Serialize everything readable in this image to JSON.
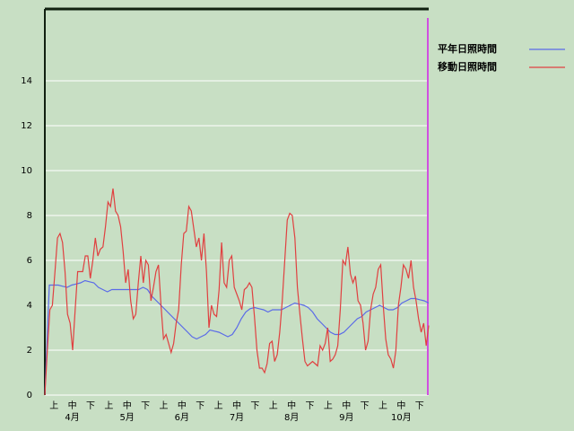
{
  "chart_data": {
    "type": "line",
    "x_tick_labels": [
      "上",
      "中",
      "下",
      "上",
      "中",
      "下",
      "上",
      "中",
      "下",
      "上",
      "中",
      "下",
      "上",
      "中",
      "下",
      "上",
      "中",
      "下",
      "上",
      "中",
      "下"
    ],
    "months": [
      "4月",
      "5月",
      "6月",
      "7月",
      "8月",
      "9月",
      "10月"
    ],
    "ylim": [
      0,
      17.2
    ],
    "yticks": [
      0,
      2,
      4,
      6,
      8,
      10,
      12,
      14
    ],
    "grid": true,
    "legend": "upper right",
    "series": [
      {
        "name": "平年日照時間",
        "color": "#5a6ae8",
        "values": [
          0,
          4.9,
          4.9,
          4.9,
          4.85,
          4.8,
          4.9,
          4.95,
          5.0,
          5.1,
          5.05,
          5.0,
          4.8,
          4.7,
          4.6,
          4.7,
          4.7,
          4.7,
          4.7,
          4.7,
          4.7,
          4.7,
          4.8,
          4.7,
          4.4,
          4.2,
          4.0,
          3.8,
          3.6,
          3.4,
          3.2,
          3.0,
          2.8,
          2.6,
          2.5,
          2.6,
          2.7,
          2.9,
          2.85,
          2.8,
          2.7,
          2.6,
          2.7,
          3.0,
          3.4,
          3.7,
          3.85,
          3.9,
          3.85,
          3.8,
          3.7,
          3.8,
          3.8,
          3.8,
          3.9,
          4.0,
          4.1,
          4.05,
          4.0,
          3.9,
          3.7,
          3.4,
          3.2,
          3.0,
          2.8,
          2.7,
          2.7,
          2.8,
          3.0,
          3.2,
          3.4,
          3.5,
          3.7,
          3.8,
          3.9,
          4.0,
          3.9,
          3.8,
          3.8,
          3.9,
          4.1,
          4.2,
          4.3,
          4.3,
          4.25,
          4.2,
          4.1
        ]
      },
      {
        "name": "移動日照時間",
        "color": "#e04040",
        "values": [
          0,
          2.0,
          3.8,
          4.0,
          5.5,
          7.0,
          7.2,
          6.8,
          5.5,
          3.6,
          3.2,
          2.0,
          3.8,
          5.5,
          5.5,
          5.5,
          6.2,
          6.2,
          5.2,
          6.0,
          7.0,
          6.2,
          6.5,
          6.6,
          7.5,
          8.6,
          8.4,
          9.2,
          8.2,
          8.0,
          7.5,
          6.4,
          5.0,
          5.6,
          4.2,
          3.4,
          3.6,
          5.0,
          6.2,
          5.0,
          6.0,
          5.8,
          4.2,
          4.8,
          5.5,
          5.8,
          4.0,
          2.5,
          2.7,
          2.3,
          1.9,
          2.3,
          3.2,
          3.8,
          5.8,
          7.2,
          7.3,
          8.4,
          8.2,
          7.4,
          6.6,
          7.0,
          6.0,
          7.2,
          5.5,
          3.0,
          4.0,
          3.6,
          3.5,
          4.7,
          6.8,
          5.0,
          4.8,
          6.0,
          6.2,
          4.8,
          4.5,
          4.2,
          3.8,
          4.7,
          4.8,
          5.0,
          4.8,
          3.5,
          2.0,
          1.2,
          1.2,
          1.0,
          1.4,
          2.3,
          2.4,
          1.5,
          1.8,
          2.8,
          4.2,
          6.0,
          7.8,
          8.1,
          8.0,
          7.0,
          4.8,
          3.6,
          2.5,
          1.5,
          1.3,
          1.4,
          1.5,
          1.4,
          1.3,
          2.2,
          2.0,
          2.3,
          3.0,
          1.5,
          1.6,
          1.8,
          2.2,
          3.8,
          6.0,
          5.8,
          6.6,
          5.4,
          5.0,
          5.3,
          4.2,
          4.0,
          3.2,
          2.0,
          2.4,
          3.8,
          4.5,
          4.8,
          5.6,
          5.8,
          4.0,
          2.5,
          1.8,
          1.6,
          1.2,
          2.0,
          4.0,
          4.8,
          5.8,
          5.6,
          5.2,
          6.0,
          4.8,
          4.2,
          3.4,
          2.8,
          3.2,
          2.2,
          3.1
        ]
      }
    ]
  }
}
